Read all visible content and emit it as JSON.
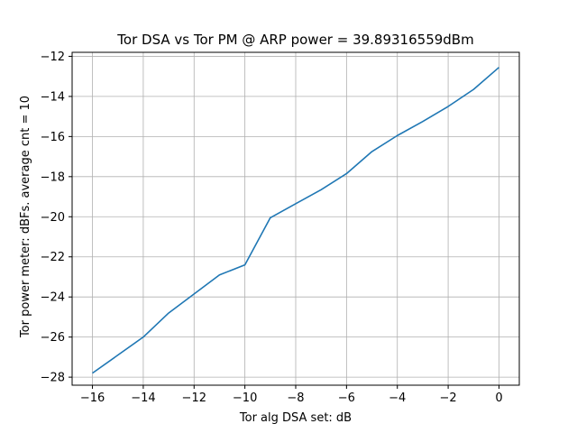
{
  "chart_data": {
    "type": "line",
    "title": "Tor DSA vs Tor PM @ ARP power = 39.89316559dBm",
    "xlabel": "Tor alg DSA set: dB",
    "ylabel": "Tor power meter: dBFs. average cnt = 10",
    "xlim": [
      -16.8,
      0.8
    ],
    "ylim": [
      -28.4,
      -11.8
    ],
    "xticks": [
      -16,
      -14,
      -12,
      -10,
      -8,
      -6,
      -4,
      -2,
      0
    ],
    "xtick_labels": [
      "−16",
      "−14",
      "−12",
      "−10",
      "−8",
      "−6",
      "−4",
      "−2",
      "0"
    ],
    "yticks": [
      -28,
      -26,
      -24,
      -22,
      -20,
      -18,
      -16,
      -14,
      -12
    ],
    "ytick_labels": [
      "−28",
      "−26",
      "−24",
      "−22",
      "−20",
      "−18",
      "−16",
      "−14",
      "−12"
    ],
    "grid": true,
    "series": [
      {
        "color": "#1f77b4",
        "x": [
          -16,
          -15,
          -14,
          -13,
          -12,
          -11,
          -10,
          -9,
          -8,
          -7,
          -6,
          -5,
          -4,
          -3,
          -2,
          -1,
          0
        ],
        "y": [
          -27.8,
          -26.9,
          -26.0,
          -24.8,
          -23.85,
          -22.9,
          -22.4,
          -20.05,
          -19.35,
          -18.65,
          -17.85,
          -16.75,
          -15.95,
          -15.25,
          -14.5,
          -13.65,
          -12.55
        ]
      }
    ]
  }
}
